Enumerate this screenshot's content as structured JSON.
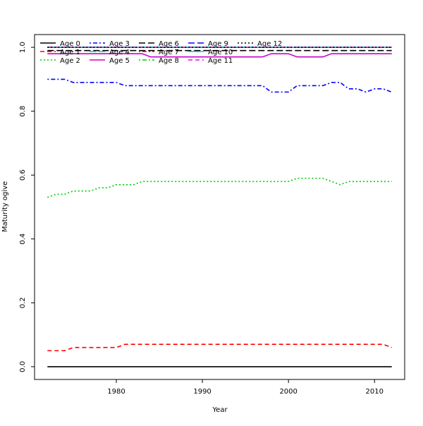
{
  "chart_data": {
    "type": "line",
    "title": "",
    "xlabel": "Year",
    "ylabel": "Maturity ogive",
    "xlim": [
      1970.5,
      2013.5
    ],
    "ylim": [
      -0.04,
      1.04
    ],
    "x_ticks": [
      1980,
      1990,
      2000,
      2010
    ],
    "y_ticks": [
      0.0,
      0.2,
      0.4,
      0.6,
      0.8,
      1.0
    ],
    "x_tick_labels": [
      "1980",
      "1990",
      "2000",
      "2010"
    ],
    "y_tick_labels": [
      "0.0",
      "0.2",
      "0.4",
      "0.6",
      "0.8",
      "1.0"
    ],
    "grid": false,
    "legend_position": "top-left",
    "x": [
      1972,
      1973,
      1974,
      1975,
      1976,
      1977,
      1978,
      1979,
      1980,
      1981,
      1982,
      1983,
      1984,
      1985,
      1986,
      1987,
      1988,
      1989,
      1990,
      1991,
      1992,
      1993,
      1994,
      1995,
      1996,
      1997,
      1998,
      1999,
      2000,
      2001,
      2002,
      2003,
      2004,
      2005,
      2006,
      2007,
      2008,
      2009,
      2010,
      2011,
      2012
    ],
    "series": [
      {
        "name": "Age 0",
        "color": "#000000",
        "dash": "solid",
        "values": [
          0,
          0,
          0,
          0,
          0,
          0,
          0,
          0,
          0,
          0,
          0,
          0,
          0,
          0,
          0,
          0,
          0,
          0,
          0,
          0,
          0,
          0,
          0,
          0,
          0,
          0,
          0,
          0,
          0,
          0,
          0,
          0,
          0,
          0,
          0,
          0,
          0,
          0,
          0,
          0,
          0
        ]
      },
      {
        "name": "Age 1",
        "color": "#ff0000",
        "dash": "dashed",
        "values": [
          0.05,
          0.05,
          0.05,
          0.06,
          0.06,
          0.06,
          0.06,
          0.06,
          0.06,
          0.07,
          0.07,
          0.07,
          0.07,
          0.07,
          0.07,
          0.07,
          0.07,
          0.07,
          0.07,
          0.07,
          0.07,
          0.07,
          0.07,
          0.07,
          0.07,
          0.07,
          0.07,
          0.07,
          0.07,
          0.07,
          0.07,
          0.07,
          0.07,
          0.07,
          0.07,
          0.07,
          0.07,
          0.07,
          0.07,
          0.07,
          0.06
        ]
      },
      {
        "name": "Age 2",
        "color": "#00cc00",
        "dash": "dotted",
        "values": [
          0.53,
          0.54,
          0.54,
          0.55,
          0.55,
          0.55,
          0.56,
          0.56,
          0.57,
          0.57,
          0.57,
          0.58,
          0.58,
          0.58,
          0.58,
          0.58,
          0.58,
          0.58,
          0.58,
          0.58,
          0.58,
          0.58,
          0.58,
          0.58,
          0.58,
          0.58,
          0.58,
          0.58,
          0.58,
          0.59,
          0.59,
          0.59,
          0.59,
          0.58,
          0.57,
          0.58,
          0.58,
          0.58,
          0.58,
          0.58,
          0.58
        ]
      },
      {
        "name": "Age 3",
        "color": "#0000ff",
        "dash": "dotdash",
        "values": [
          0.9,
          0.9,
          0.9,
          0.89,
          0.89,
          0.89,
          0.89,
          0.89,
          0.89,
          0.88,
          0.88,
          0.88,
          0.88,
          0.88,
          0.88,
          0.88,
          0.88,
          0.88,
          0.88,
          0.88,
          0.88,
          0.88,
          0.88,
          0.88,
          0.88,
          0.88,
          0.86,
          0.86,
          0.86,
          0.88,
          0.88,
          0.88,
          0.88,
          0.89,
          0.89,
          0.87,
          0.87,
          0.86,
          0.87,
          0.87,
          0.86
        ]
      },
      {
        "name": "Age 4",
        "color": "#00cccc",
        "dash": "longdash",
        "values": [
          1,
          1,
          1,
          1,
          1,
          1,
          1,
          1,
          1,
          1,
          1,
          1,
          1,
          1,
          1,
          1,
          1,
          1,
          1,
          1,
          1,
          1,
          1,
          1,
          1,
          1,
          1,
          1,
          1,
          1,
          1,
          1,
          1,
          1,
          1,
          1,
          1,
          1,
          1,
          1,
          1
        ]
      },
      {
        "name": "Age 5",
        "color": "#cc00cc",
        "dash": "solid",
        "values": [
          0.98,
          0.98,
          0.98,
          0.98,
          0.98,
          0.98,
          0.98,
          0.98,
          0.98,
          0.98,
          0.98,
          0.98,
          0.97,
          0.97,
          0.97,
          0.97,
          0.97,
          0.97,
          0.97,
          0.97,
          0.97,
          0.97,
          0.97,
          0.97,
          0.97,
          0.97,
          0.98,
          0.98,
          0.98,
          0.97,
          0.97,
          0.97,
          0.97,
          0.98,
          0.98,
          0.98,
          0.98,
          0.98,
          0.98,
          0.98,
          0.98
        ]
      },
      {
        "name": "Age 6",
        "color": "#000000",
        "dash": "longdash",
        "values": [
          0.99,
          0.99,
          0.99,
          0.99,
          0.99,
          0.99,
          0.99,
          0.99,
          0.99,
          0.99,
          0.99,
          0.99,
          0.99,
          0.99,
          0.99,
          0.99,
          0.99,
          0.99,
          0.99,
          0.99,
          0.99,
          0.99,
          0.99,
          0.99,
          0.99,
          0.99,
          0.99,
          0.99,
          0.99,
          0.99,
          0.99,
          0.99,
          0.99,
          0.99,
          0.99,
          0.99,
          0.99,
          0.99,
          0.99,
          0.99,
          0.99
        ]
      },
      {
        "name": "Age 7",
        "color": "#ff0000",
        "dash": "dotdash",
        "values": [
          1,
          1,
          1,
          1,
          1,
          1,
          1,
          1,
          1,
          1,
          1,
          1,
          1,
          1,
          1,
          1,
          1,
          1,
          1,
          1,
          1,
          1,
          1,
          1,
          1,
          1,
          1,
          1,
          1,
          1,
          1,
          1,
          1,
          1,
          1,
          1,
          1,
          1,
          1,
          1,
          1
        ]
      },
      {
        "name": "Age 8",
        "color": "#00cc00",
        "dash": "dotdash",
        "values": [
          1,
          1,
          1,
          1,
          1,
          1,
          1,
          1,
          1,
          1,
          1,
          1,
          1,
          1,
          1,
          1,
          1,
          1,
          1,
          1,
          1,
          1,
          1,
          1,
          1,
          1,
          1,
          1,
          1,
          1,
          1,
          1,
          1,
          1,
          1,
          1,
          1,
          1,
          1,
          1,
          1
        ]
      },
      {
        "name": "Age 9",
        "color": "#0000ff",
        "dash": "longdash",
        "values": [
          1,
          1,
          1,
          1,
          1,
          1,
          1,
          1,
          1,
          1,
          1,
          1,
          1,
          1,
          1,
          1,
          1,
          1,
          1,
          1,
          1,
          1,
          1,
          1,
          1,
          1,
          1,
          1,
          1,
          1,
          1,
          1,
          1,
          1,
          1,
          1,
          1,
          1,
          1,
          1,
          1
        ]
      },
      {
        "name": "Age 10",
        "color": "#00cccc",
        "dash": "solid",
        "values": [
          1,
          1,
          1,
          1,
          1,
          1,
          1,
          1,
          1,
          1,
          1,
          1,
          1,
          1,
          1,
          1,
          1,
          1,
          1,
          1,
          1,
          1,
          1,
          1,
          1,
          1,
          1,
          1,
          1,
          1,
          1,
          1,
          1,
          1,
          1,
          1,
          1,
          1,
          1,
          1,
          1
        ]
      },
      {
        "name": "Age 11",
        "color": "#ff00ff",
        "dash": "dashed",
        "values": [
          1,
          1,
          1,
          1,
          1,
          1,
          1,
          1,
          1,
          1,
          1,
          1,
          1,
          1,
          1,
          1,
          1,
          1,
          1,
          1,
          1,
          1,
          1,
          1,
          1,
          1,
          1,
          1,
          1,
          1,
          1,
          1,
          1,
          1,
          1,
          1,
          1,
          1,
          1,
          1,
          1
        ]
      },
      {
        "name": "Age 12",
        "color": "#000000",
        "dash": "dotted",
        "values": [
          1,
          1,
          1,
          1,
          1,
          1,
          1,
          1,
          1,
          1,
          1,
          1,
          1,
          1,
          1,
          1,
          1,
          1,
          1,
          1,
          1,
          1,
          1,
          1,
          1,
          1,
          1,
          1,
          1,
          1,
          1,
          1,
          1,
          1,
          1,
          1,
          1,
          1,
          1,
          1,
          1
        ]
      }
    ]
  }
}
